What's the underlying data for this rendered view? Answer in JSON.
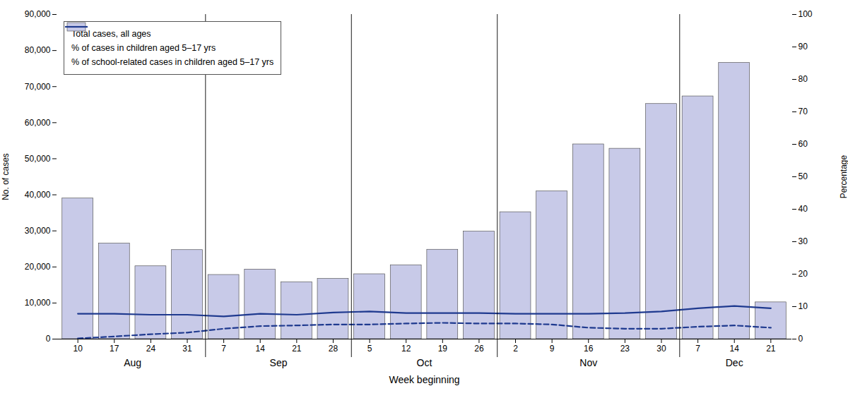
{
  "chart_data": {
    "type": "bar",
    "categories": [
      "10",
      "17",
      "24",
      "31",
      "7",
      "14",
      "21",
      "28",
      "5",
      "12",
      "19",
      "26",
      "2",
      "9",
      "16",
      "23",
      "30",
      "7",
      "14",
      "21"
    ],
    "groups": [
      {
        "label": "Aug",
        "first": 0,
        "last": 3
      },
      {
        "label": "Sep",
        "first": 4,
        "last": 7
      },
      {
        "label": "Oct",
        "first": 8,
        "last": 11
      },
      {
        "label": "Nov",
        "first": 12,
        "last": 16
      },
      {
        "label": "Dec",
        "first": 17,
        "last": 19
      }
    ],
    "xlabel": "Week beginning",
    "ylabel": "No. of cases",
    "y2label": "Percentage",
    "ylim": [
      0,
      90000
    ],
    "yticks": [
      0,
      {
        "value": 10000,
        "label": "10,000"
      },
      {
        "value": 20000,
        "label": "20,000"
      },
      {
        "value": 30000,
        "label": "30,000"
      },
      {
        "value": 40000,
        "label": "40,000"
      },
      {
        "value": 50000,
        "label": "50,000"
      },
      {
        "value": 60000,
        "label": "60,000"
      },
      {
        "value": 70000,
        "label": "70,000"
      },
      {
        "value": 80000,
        "label": "80,000"
      },
      {
        "value": 90000,
        "label": "90,000"
      }
    ],
    "y2lim": [
      0,
      100
    ],
    "y2ticks": [
      0,
      10,
      20,
      30,
      40,
      50,
      60,
      70,
      80,
      90,
      100
    ],
    "grid": false,
    "legend": "upper left",
    "series": [
      {
        "name": "Total cases, all ages",
        "type": "bar",
        "color": "#c8cae8",
        "values": [
          39000,
          26500,
          20200,
          24700,
          17800,
          19300,
          15800,
          16700,
          18000,
          20500,
          24800,
          29800,
          35200,
          41000,
          54000,
          52800,
          65200,
          67300,
          76600,
          10200
        ]
      },
      {
        "name": "% of cases in children aged 5–17 yrs",
        "type": "line",
        "axis": "y2",
        "color": "#1f3a8f",
        "line_style": "solid",
        "values": [
          7.8,
          7.8,
          7.5,
          7.5,
          7.0,
          7.8,
          7.5,
          8.2,
          8.5,
          8.0,
          8.0,
          8.0,
          7.8,
          7.8,
          7.8,
          8.0,
          8.5,
          9.5,
          10.2,
          9.5
        ]
      },
      {
        "name": "% of school-related cases in children aged 5–17 yrs",
        "type": "line",
        "axis": "y2",
        "color": "#1f3a8f",
        "line_style": "dashed",
        "values": [
          0.2,
          0.8,
          1.5,
          2.0,
          3.2,
          4.0,
          4.2,
          4.5,
          4.5,
          4.8,
          5.0,
          4.8,
          4.8,
          4.5,
          3.5,
          3.2,
          3.2,
          3.8,
          4.2,
          3.5
        ]
      }
    ]
  }
}
